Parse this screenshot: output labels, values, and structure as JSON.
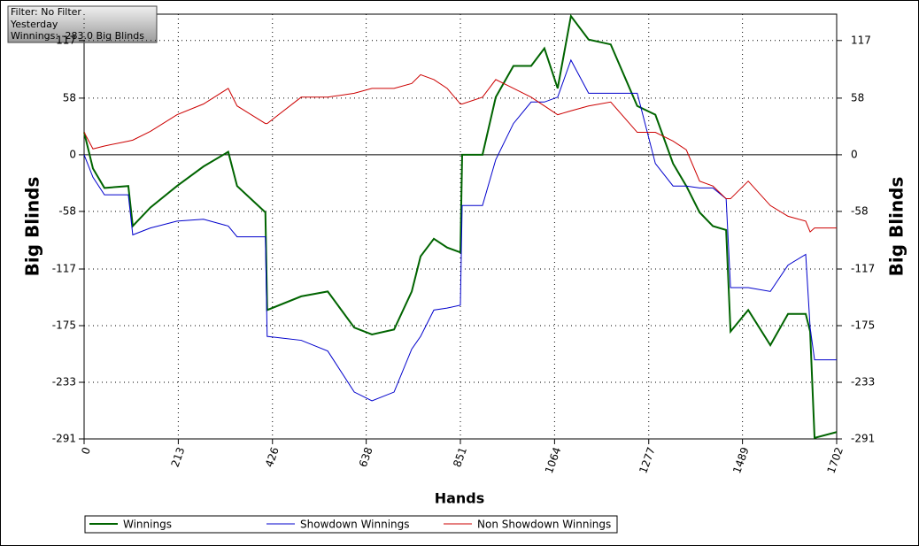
{
  "chart_data": {
    "type": "line",
    "info": [
      "Filter: No Filter",
      "Yesterday",
      "Winnings: -283.0 Big Blinds"
    ],
    "x_label": "Hands",
    "y_label": "Big Blinds",
    "x": [
      0,
      20,
      46,
      100,
      110,
      150,
      210,
      270,
      326,
      346,
      410,
      414,
      491,
      551,
      611,
      651,
      701,
      741,
      761,
      791,
      821,
      851,
      855,
      901,
      931,
      971,
      1011,
      1041,
      1071,
      1101,
      1141,
      1191,
      1251,
      1292,
      1332,
      1362,
      1392,
      1422,
      1452,
      1462,
      1502,
      1552,
      1592,
      1632,
      1642,
      1652,
      1702
    ],
    "series": [
      {
        "name": "Winnings",
        "color": "#006400",
        "width": 2,
        "values": [
          23,
          -14,
          -34,
          -32,
          -73,
          -54,
          -32,
          -12,
          3,
          -32,
          -59,
          -159,
          -145,
          -140,
          -177,
          -184,
          -179,
          -140,
          -104,
          -86,
          -95,
          -100,
          0,
          0,
          59,
          91,
          91,
          109,
          68,
          142,
          118,
          113,
          50,
          41,
          -9,
          -32,
          -59,
          -73,
          -77,
          -181,
          -159,
          -195,
          -163,
          -163,
          -181,
          -290,
          -284
        ]
      },
      {
        "name": "Showdown Winnings",
        "color": "#0000cc",
        "width": 1,
        "values": [
          0,
          -23,
          -41,
          -41,
          -82,
          -75,
          -68,
          -66,
          -73,
          -84,
          -84,
          -186,
          -190,
          -201,
          -243,
          -252,
          -243,
          -199,
          -186,
          -159,
          -157,
          -154,
          -52,
          -52,
          -5,
          32,
          54,
          54,
          59,
          97,
          63,
          63,
          63,
          -9,
          -32,
          -32,
          -34,
          -34,
          -45,
          -136,
          -136,
          -140,
          -113,
          -102,
          -177,
          -210,
          -210
        ]
      },
      {
        "name": "Non Showdown Winnings",
        "color": "#cc0000",
        "width": 1,
        "values": [
          23,
          6,
          9,
          14,
          15,
          24,
          41,
          52,
          68,
          50,
          32,
          32,
          59,
          59,
          63,
          68,
          68,
          73,
          82,
          77,
          68,
          52,
          52,
          59,
          77,
          68,
          59,
          50,
          41,
          45,
          50,
          54,
          23,
          23,
          14,
          5,
          -27,
          -32,
          -45,
          -45,
          -27,
          -52,
          -63,
          -68,
          -79,
          -75,
          -75
        ]
      }
    ],
    "xlim": [
      0,
      1702
    ],
    "xticks": [
      0,
      213,
      426,
      638,
      851,
      1064,
      1277,
      1489,
      1702
    ],
    "ylim": [
      -291,
      144
    ],
    "yticks": [
      -291,
      -233,
      -175,
      -117,
      -58,
      0,
      58,
      117
    ],
    "grid": true
  }
}
